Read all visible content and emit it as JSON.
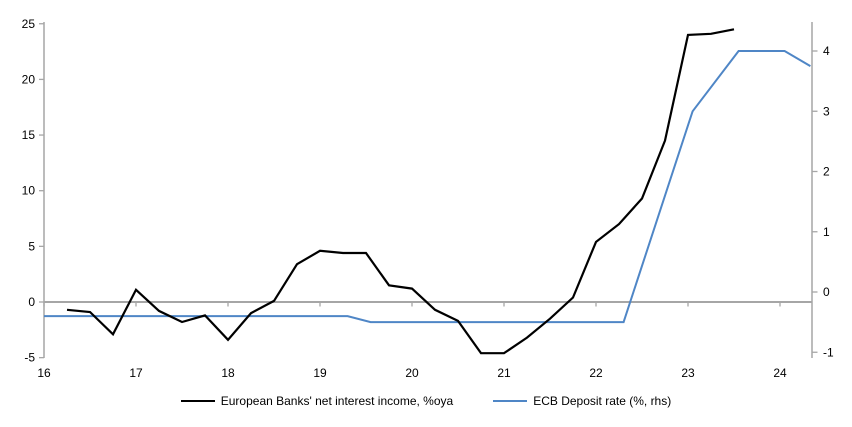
{
  "chart": {
    "background": "#ffffff",
    "axis_color": "#a6a6a6",
    "zero_line_color": "#a6a6a6",
    "text_color": "#000000",
    "left_axis": {
      "tick_labels": [
        "25",
        "20",
        "15",
        "10",
        "5",
        "0",
        "-5"
      ],
      "tick_values": [
        25,
        20,
        15,
        10,
        5,
        0,
        -5
      ]
    },
    "right_axis": {
      "tick_labels": [
        "4",
        "3",
        "2",
        "1",
        "0",
        "-1"
      ],
      "tick_values": [
        4,
        3,
        2,
        1,
        0,
        -1
      ]
    },
    "x_axis": {
      "tick_labels": [
        "16",
        "17",
        "18",
        "19",
        "20",
        "21",
        "22",
        "23",
        "24"
      ],
      "tick_values": [
        16,
        17,
        18,
        19,
        20,
        21,
        22,
        23,
        24
      ]
    },
    "legend": [
      {
        "label": "European Banks' net interest income, %oya",
        "color": "#000000"
      },
      {
        "label": "ECB Deposit rate (%, rhs)",
        "color": "#4f86c6"
      }
    ]
  },
  "chart_data": {
    "type": "line",
    "title": "",
    "xlabel": "",
    "ylabel_left": "",
    "ylabel_right": "",
    "xlim": [
      16,
      24.4
    ],
    "left_ylim": [
      -5,
      25
    ],
    "right_ylim": [
      -1,
      4
    ],
    "grid": "zero-line-only",
    "legend_position": "bottom-center",
    "series": [
      {
        "name": "European Banks' net interest income, %oya",
        "axis": "left",
        "color": "#000000",
        "x": [
          16.25,
          16.5,
          16.75,
          17.0,
          17.25,
          17.5,
          17.75,
          18.0,
          18.25,
          18.5,
          18.75,
          19.0,
          19.25,
          19.5,
          19.75,
          20.0,
          20.25,
          20.5,
          20.75,
          21.0,
          21.25,
          21.5,
          21.75,
          22.0,
          22.25,
          22.5,
          22.75,
          23.0,
          23.25,
          23.5
        ],
        "y": [
          -0.7,
          -0.9,
          -2.9,
          1.1,
          -0.8,
          -1.8,
          -1.2,
          -3.4,
          -1.0,
          0.1,
          3.4,
          4.6,
          4.4,
          4.4,
          1.5,
          1.2,
          -0.7,
          -1.7,
          -4.6,
          -4.6,
          -3.2,
          -1.5,
          0.4,
          5.4,
          7.0,
          9.3,
          14.5,
          24.0,
          24.1,
          24.5
        ]
      },
      {
        "name": "ECB Deposit rate (%, rhs)",
        "axis": "right",
        "color": "#4f86c6",
        "x": [
          16.0,
          19.3,
          19.55,
          22.3,
          23.05,
          23.55,
          24.05,
          24.33
        ],
        "y": [
          -0.4,
          -0.4,
          -0.5,
          -0.5,
          3.0,
          4.0,
          4.0,
          3.75
        ]
      }
    ]
  }
}
